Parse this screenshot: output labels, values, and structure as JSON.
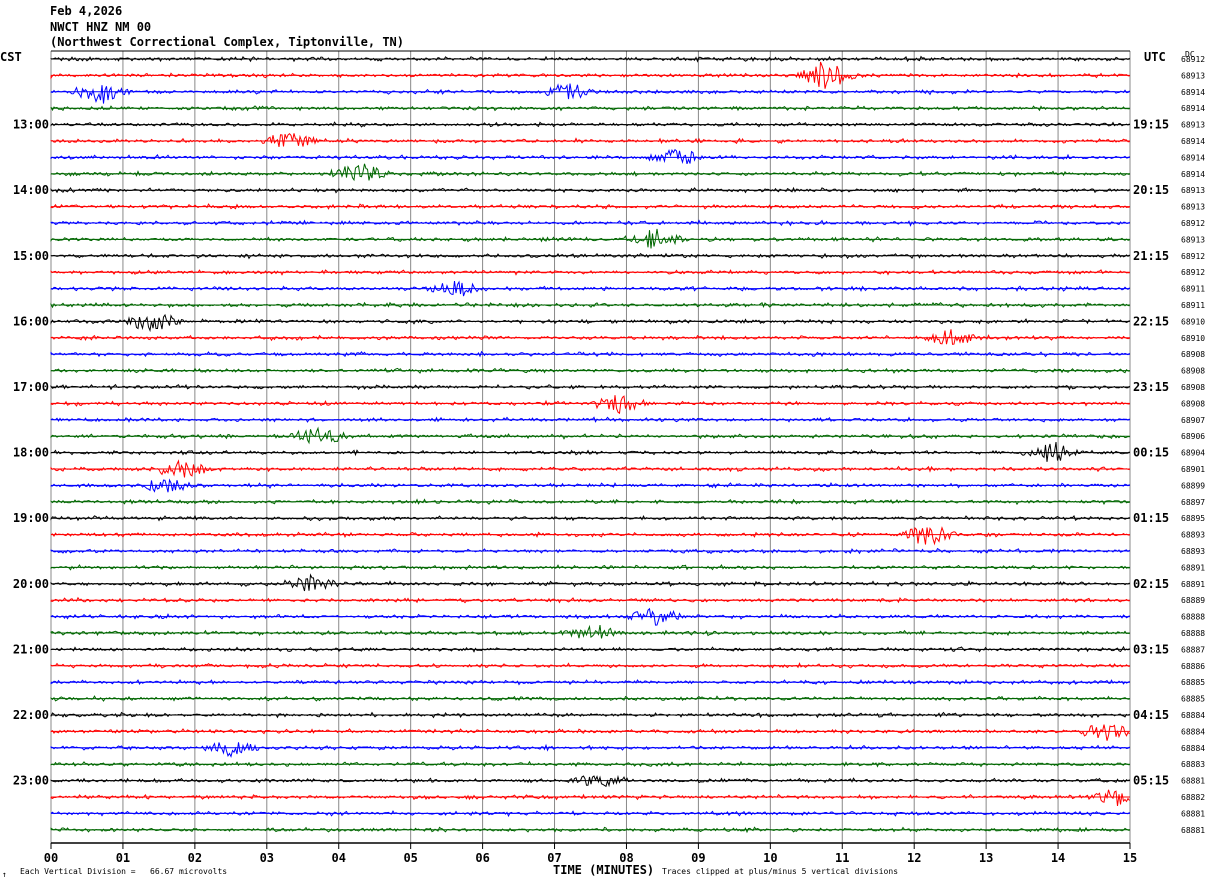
{
  "header": {
    "date": "Feb 4,2026",
    "station": "NWCT HNZ NM 00",
    "location": "(Northwest Correctional Complex, Tiptonville, TN)"
  },
  "left_tz": "CST",
  "right_tz": "UTC",
  "dc_label": "DC",
  "footer": {
    "division": "Each Vertical Division =   66.67 microvolts",
    "xlabel": "TIME (MINUTES)",
    "clip": "Traces clipped at plus/minus 5 vertical divisions",
    "corner": "↑"
  },
  "chart_data": {
    "type": "line",
    "title": "NWCT HNZ NM 00",
    "xlabel": "TIME (MINUTES)",
    "xlim": [
      0,
      15
    ],
    "x_ticks": [
      "00",
      "01",
      "02",
      "03",
      "04",
      "05",
      "06",
      "07",
      "08",
      "09",
      "10",
      "11",
      "12",
      "13",
      "14",
      "15"
    ],
    "left_ticks": [
      "13:00",
      "14:00",
      "15:00",
      "16:00",
      "17:00",
      "18:00",
      "19:00",
      "20:00",
      "21:00",
      "22:00",
      "23:00"
    ],
    "right_ticks": [
      "19:15",
      "20:15",
      "21:15",
      "22:15",
      "23:15",
      "00:15",
      "01:15",
      "02:15",
      "03:15",
      "04:15",
      "05:15"
    ],
    "trace_colors": [
      "#000000",
      "#ff0000",
      "#0000ff",
      "#006600"
    ],
    "dc_values": [
      "68912",
      "68913",
      "68914",
      "68914",
      "68913",
      "68914",
      "68914",
      "68914",
      "68913",
      "68913",
      "68912",
      "68913",
      "68912",
      "68912",
      "68911",
      "68911",
      "68910",
      "68910",
      "68908",
      "68908",
      "68908",
      "68908",
      "68907",
      "68906",
      "68904",
      "68901",
      "68899",
      "68897",
      "68895",
      "68893",
      "68893",
      "68891",
      "68891",
      "68889",
      "68888",
      "68888",
      "68887",
      "68886",
      "68885",
      "68885",
      "68884",
      "68884",
      "68884",
      "68883",
      "68881",
      "68882",
      "68881",
      "68881"
    ],
    "bursts": [
      {
        "trace": 2,
        "minute": 0.7,
        "amp": 3.0
      },
      {
        "trace": 1,
        "minute": 10.8,
        "amp": 4.0
      },
      {
        "trace": 2,
        "minute": 7.2,
        "amp": 2.0
      },
      {
        "trace": 5,
        "minute": 3.3,
        "amp": 2.0
      },
      {
        "trace": 7,
        "minute": 4.3,
        "amp": 2.5
      },
      {
        "trace": 6,
        "minute": 8.7,
        "amp": 2.0
      },
      {
        "trace": 11,
        "minute": 8.4,
        "amp": 2.5
      },
      {
        "trace": 14,
        "minute": 5.6,
        "amp": 2.0
      },
      {
        "trace": 16,
        "minute": 1.4,
        "amp": 2.5
      },
      {
        "trace": 17,
        "minute": 12.5,
        "amp": 2.0
      },
      {
        "trace": 21,
        "minute": 7.9,
        "amp": 2.5
      },
      {
        "trace": 23,
        "minute": 3.7,
        "amp": 2.0
      },
      {
        "trace": 24,
        "minute": 13.9,
        "amp": 2.5
      },
      {
        "trace": 25,
        "minute": 1.8,
        "amp": 2.5
      },
      {
        "trace": 26,
        "minute": 1.6,
        "amp": 2.0
      },
      {
        "trace": 29,
        "minute": 12.2,
        "amp": 2.5
      },
      {
        "trace": 32,
        "minute": 3.6,
        "amp": 2.0
      },
      {
        "trace": 34,
        "minute": 8.4,
        "amp": 2.0
      },
      {
        "trace": 35,
        "minute": 7.5,
        "amp": 2.0
      },
      {
        "trace": 41,
        "minute": 14.7,
        "amp": 2.0
      },
      {
        "trace": 42,
        "minute": 2.5,
        "amp": 1.8
      },
      {
        "trace": 44,
        "minute": 7.6,
        "amp": 1.8
      },
      {
        "trace": 45,
        "minute": 14.8,
        "amp": 2.0
      }
    ]
  }
}
